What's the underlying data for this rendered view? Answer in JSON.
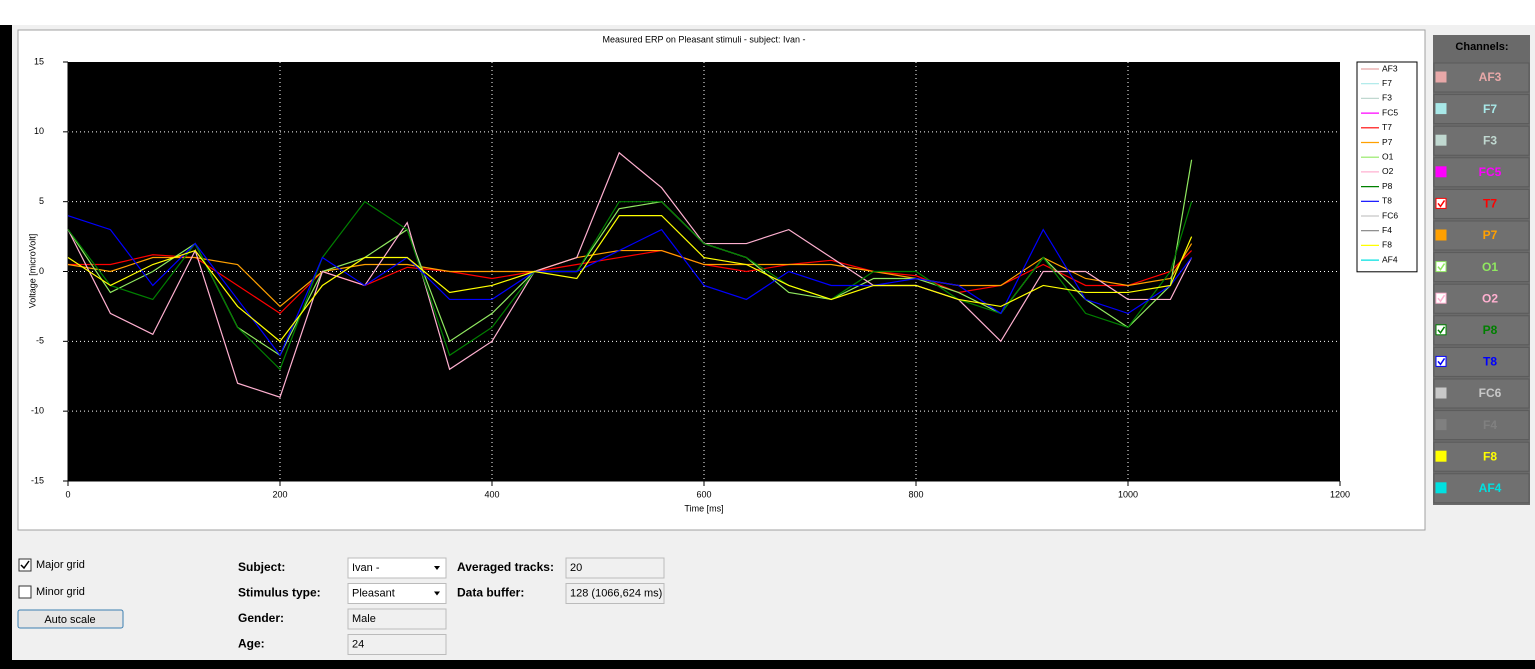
{
  "chart_data": {
    "type": "line",
    "title": "Measured ERP on Pleasant stimuli - subject: Ivan -",
    "xlabel": "Time [ms]",
    "ylabel": "Voltage [microVolt]",
    "x": [
      0,
      40,
      80,
      120,
      160,
      200,
      240,
      280,
      320,
      360,
      400,
      440,
      480,
      520,
      560,
      600,
      640,
      680,
      720,
      760,
      800,
      840,
      880,
      920,
      960,
      1000,
      1040,
      1060
    ],
    "xlim": [
      0,
      1200
    ],
    "xticks": [
      0,
      200,
      400,
      600,
      800,
      1000,
      1200
    ],
    "ylim": [
      -15,
      15
    ],
    "yticks": [
      -15,
      -10,
      -5,
      0,
      5,
      10,
      15
    ],
    "grid": true,
    "channels_title": "Channels:",
    "series": [
      {
        "name": "AF3",
        "color": "#e8a8a8",
        "visible": false
      },
      {
        "name": "F7",
        "color": "#a8e8e8",
        "visible": false
      },
      {
        "name": "F3",
        "color": "#c0d8d0",
        "visible": false
      },
      {
        "name": "FC5",
        "color": "#ff00ff",
        "visible": false
      },
      {
        "name": "T7",
        "color": "#ff0000",
        "visible": true,
        "values": [
          0.5,
          0.5,
          1.2,
          1,
          -1,
          -3,
          0,
          -1,
          0.3,
          0,
          -0.5,
          0,
          0.5,
          1,
          1.5,
          0.5,
          0,
          0.5,
          0.8,
          0,
          -0.3,
          -1.5,
          -1,
          0.5,
          -1,
          -1,
          0,
          1.5
        ]
      },
      {
        "name": "P7",
        "color": "#ffa000",
        "visible": false,
        "values": [
          0.5,
          0,
          1,
          1,
          0.5,
          -2.5,
          0,
          0.5,
          0.5,
          0,
          0,
          0,
          1,
          1.5,
          1.5,
          0.5,
          0.5,
          0.5,
          0.5,
          0,
          -0.5,
          -1,
          -1,
          1,
          -0.5,
          -1,
          -0.5,
          2
        ]
      },
      {
        "name": "O1",
        "color": "#90e860",
        "visible": true,
        "values": [
          3,
          -1.5,
          0,
          2,
          -4,
          -6,
          0,
          1,
          3,
          -5,
          -3,
          0,
          0,
          4.5,
          5,
          2,
          1,
          -1.5,
          -2,
          -0.5,
          -0.5,
          -1.5,
          -3,
          1,
          -2,
          -4,
          -1,
          8
        ]
      },
      {
        "name": "O2",
        "color": "#ffb0d0",
        "visible": true,
        "values": [
          3,
          -3,
          -4.5,
          1.5,
          -8,
          -9,
          0,
          -1,
          3.5,
          -7,
          -5,
          0,
          1,
          8.5,
          6,
          2,
          2,
          3,
          1,
          -1,
          -1,
          -2,
          -5,
          0,
          0,
          -2,
          -2,
          1
        ]
      },
      {
        "name": "P8",
        "color": "#008000",
        "visible": true,
        "values": [
          3,
          -1,
          -2,
          2,
          -4,
          -7,
          1,
          5,
          3,
          -6,
          -4,
          0,
          0,
          5,
          5,
          2,
          1,
          -1,
          -2,
          0,
          0,
          -2,
          -3,
          1,
          -3,
          -4,
          0,
          5
        ]
      },
      {
        "name": "T8",
        "color": "#0000ff",
        "visible": true,
        "values": [
          4,
          3,
          -1,
          2,
          -2,
          -6,
          1,
          -1,
          1,
          -2,
          -2,
          0,
          0,
          1.5,
          3,
          -1,
          -2,
          0,
          -1,
          -1,
          -0.5,
          -1,
          -3,
          3,
          -2,
          -3,
          -1,
          1
        ]
      },
      {
        "name": "FC6",
        "color": "#c8c8c8",
        "visible": false
      },
      {
        "name": "F4",
        "color": "#808080",
        "visible": false
      },
      {
        "name": "F8",
        "color": "#ffff00",
        "visible": false,
        "values": [
          1,
          -1,
          0.5,
          1.5,
          -2.5,
          -5,
          -1,
          1,
          1,
          -1.5,
          -1,
          0,
          -0.5,
          4,
          4,
          1,
          0.5,
          -1,
          -2,
          -1,
          -1,
          -2,
          -2.5,
          -1,
          -1.5,
          -1.5,
          -1,
          2.5
        ]
      },
      {
        "name": "AF4",
        "color": "#00e0e0",
        "visible": false
      }
    ]
  },
  "controls": {
    "major_grid": {
      "label": "Major grid",
      "checked": true
    },
    "minor_grid": {
      "label": "Minor grid",
      "checked": false
    },
    "auto_scale": "Auto scale"
  },
  "info": [
    {
      "label": "Subject:",
      "value": "Ivan -",
      "dropdown": true
    },
    {
      "label": "Stimulus type:",
      "value": "Pleasant",
      "dropdown": true
    },
    {
      "label": "Gender:",
      "value": "Male"
    },
    {
      "label": "Age:",
      "value": "24"
    }
  ],
  "stats": [
    {
      "label": "Averaged tracks:",
      "value": "20"
    },
    {
      "label": "Data buffer:",
      "value": "128 (1066,624 ms)"
    }
  ]
}
